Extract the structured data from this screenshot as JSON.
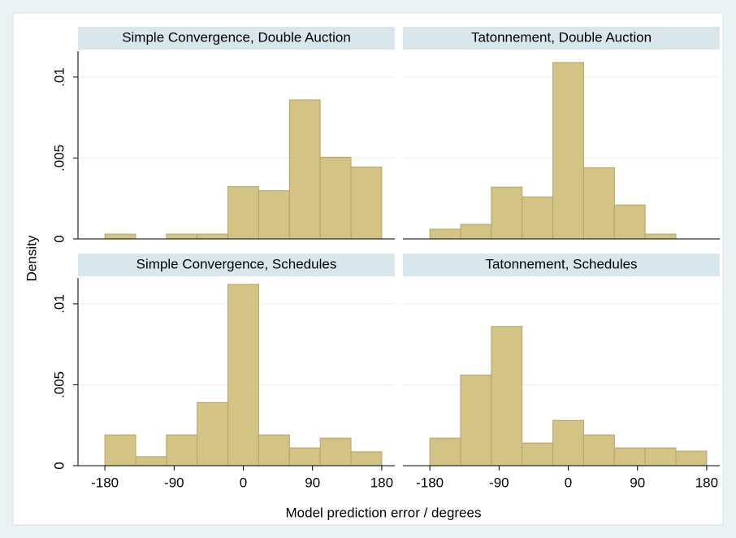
{
  "chart_data": {
    "type": "histogram",
    "xlabel": "Model prediction error / degrees",
    "ylabel": "Density",
    "color": "#d3c485",
    "grid": true,
    "xlim": [
      -215,
      197
    ],
    "xticks": [
      -180,
      -90,
      0,
      90,
      180
    ],
    "ylim": [
      0,
      0.0116
    ],
    "yticks": [
      0,
      {
        "value": 0.005,
        "label": ".005"
      },
      {
        "value": 0.01,
        "label": ".01"
      }
    ],
    "bins": [
      -180,
      -140,
      -100,
      -60,
      -20,
      20,
      60,
      100,
      140,
      180
    ],
    "panels": [
      {
        "title": "Simple Convergence, Double Auction",
        "values": [
          0.0003,
          0,
          0.0003,
          0.0003,
          0.00323,
          0.00298,
          0.00859,
          0.00505,
          0.00444
        ]
      },
      {
        "title": "Tatonnement, Double Auction",
        "values": [
          0.0006,
          0.0009,
          0.0032,
          0.0026,
          0.0109,
          0.0044,
          0.0021,
          0.0003,
          0
        ]
      },
      {
        "title": "Simple Convergence, Schedules",
        "values": [
          0.0019,
          0.00056,
          0.0019,
          0.0039,
          0.0112,
          0.0019,
          0.0011,
          0.0017,
          0.00086
        ]
      },
      {
        "title": "Tatonnement, Schedules",
        "values": [
          0.0017,
          0.0056,
          0.0086,
          0.0014,
          0.0028,
          0.0019,
          0.0011,
          0.0011,
          0.0009
        ]
      }
    ]
  }
}
